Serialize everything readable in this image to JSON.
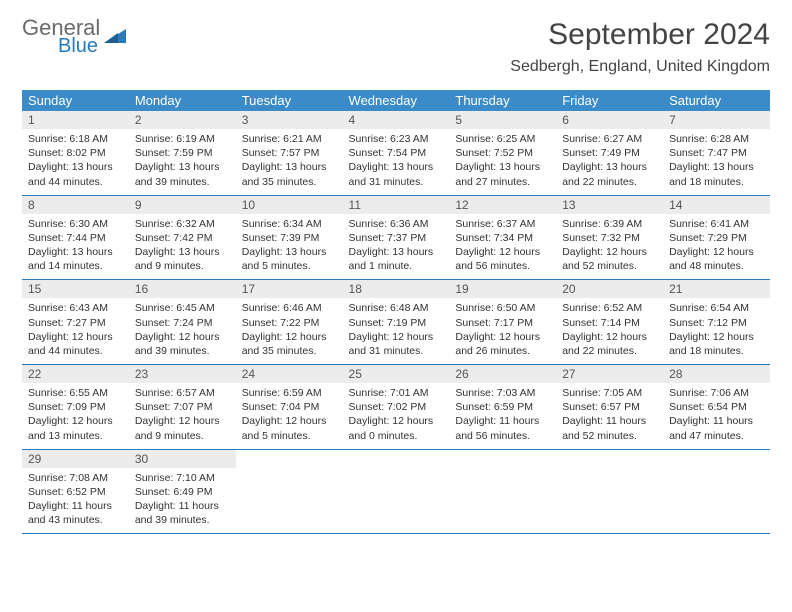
{
  "logo": {
    "line1": "General",
    "line2": "Blue"
  },
  "title": "September 2024",
  "location": "Sedbergh, England, United Kingdom",
  "colors": {
    "header_bg": "#3b8bc8",
    "header_text": "#ffffff",
    "daynum_bg": "#ececec",
    "border": "#2a7ab9",
    "logo_gray": "#6b6b6b",
    "logo_blue": "#2a7ab9"
  },
  "weekdays": [
    "Sunday",
    "Monday",
    "Tuesday",
    "Wednesday",
    "Thursday",
    "Friday",
    "Saturday"
  ],
  "days": [
    {
      "n": "1",
      "sunrise": "6:18 AM",
      "sunset": "8:02 PM",
      "daylight": "13 hours and 44 minutes."
    },
    {
      "n": "2",
      "sunrise": "6:19 AM",
      "sunset": "7:59 PM",
      "daylight": "13 hours and 39 minutes."
    },
    {
      "n": "3",
      "sunrise": "6:21 AM",
      "sunset": "7:57 PM",
      "daylight": "13 hours and 35 minutes."
    },
    {
      "n": "4",
      "sunrise": "6:23 AM",
      "sunset": "7:54 PM",
      "daylight": "13 hours and 31 minutes."
    },
    {
      "n": "5",
      "sunrise": "6:25 AM",
      "sunset": "7:52 PM",
      "daylight": "13 hours and 27 minutes."
    },
    {
      "n": "6",
      "sunrise": "6:27 AM",
      "sunset": "7:49 PM",
      "daylight": "13 hours and 22 minutes."
    },
    {
      "n": "7",
      "sunrise": "6:28 AM",
      "sunset": "7:47 PM",
      "daylight": "13 hours and 18 minutes."
    },
    {
      "n": "8",
      "sunrise": "6:30 AM",
      "sunset": "7:44 PM",
      "daylight": "13 hours and 14 minutes."
    },
    {
      "n": "9",
      "sunrise": "6:32 AM",
      "sunset": "7:42 PM",
      "daylight": "13 hours and 9 minutes."
    },
    {
      "n": "10",
      "sunrise": "6:34 AM",
      "sunset": "7:39 PM",
      "daylight": "13 hours and 5 minutes."
    },
    {
      "n": "11",
      "sunrise": "6:36 AM",
      "sunset": "7:37 PM",
      "daylight": "13 hours and 1 minute."
    },
    {
      "n": "12",
      "sunrise": "6:37 AM",
      "sunset": "7:34 PM",
      "daylight": "12 hours and 56 minutes."
    },
    {
      "n": "13",
      "sunrise": "6:39 AM",
      "sunset": "7:32 PM",
      "daylight": "12 hours and 52 minutes."
    },
    {
      "n": "14",
      "sunrise": "6:41 AM",
      "sunset": "7:29 PM",
      "daylight": "12 hours and 48 minutes."
    },
    {
      "n": "15",
      "sunrise": "6:43 AM",
      "sunset": "7:27 PM",
      "daylight": "12 hours and 44 minutes."
    },
    {
      "n": "16",
      "sunrise": "6:45 AM",
      "sunset": "7:24 PM",
      "daylight": "12 hours and 39 minutes."
    },
    {
      "n": "17",
      "sunrise": "6:46 AM",
      "sunset": "7:22 PM",
      "daylight": "12 hours and 35 minutes."
    },
    {
      "n": "18",
      "sunrise": "6:48 AM",
      "sunset": "7:19 PM",
      "daylight": "12 hours and 31 minutes."
    },
    {
      "n": "19",
      "sunrise": "6:50 AM",
      "sunset": "7:17 PM",
      "daylight": "12 hours and 26 minutes."
    },
    {
      "n": "20",
      "sunrise": "6:52 AM",
      "sunset": "7:14 PM",
      "daylight": "12 hours and 22 minutes."
    },
    {
      "n": "21",
      "sunrise": "6:54 AM",
      "sunset": "7:12 PM",
      "daylight": "12 hours and 18 minutes."
    },
    {
      "n": "22",
      "sunrise": "6:55 AM",
      "sunset": "7:09 PM",
      "daylight": "12 hours and 13 minutes."
    },
    {
      "n": "23",
      "sunrise": "6:57 AM",
      "sunset": "7:07 PM",
      "daylight": "12 hours and 9 minutes."
    },
    {
      "n": "24",
      "sunrise": "6:59 AM",
      "sunset": "7:04 PM",
      "daylight": "12 hours and 5 minutes."
    },
    {
      "n": "25",
      "sunrise": "7:01 AM",
      "sunset": "7:02 PM",
      "daylight": "12 hours and 0 minutes."
    },
    {
      "n": "26",
      "sunrise": "7:03 AM",
      "sunset": "6:59 PM",
      "daylight": "11 hours and 56 minutes."
    },
    {
      "n": "27",
      "sunrise": "7:05 AM",
      "sunset": "6:57 PM",
      "daylight": "11 hours and 52 minutes."
    },
    {
      "n": "28",
      "sunrise": "7:06 AM",
      "sunset": "6:54 PM",
      "daylight": "11 hours and 47 minutes."
    },
    {
      "n": "29",
      "sunrise": "7:08 AM",
      "sunset": "6:52 PM",
      "daylight": "11 hours and 43 minutes."
    },
    {
      "n": "30",
      "sunrise": "7:10 AM",
      "sunset": "6:49 PM",
      "daylight": "11 hours and 39 minutes."
    }
  ],
  "labels": {
    "sunrise": "Sunrise: ",
    "sunset": "Sunset: ",
    "daylight": "Daylight: "
  }
}
